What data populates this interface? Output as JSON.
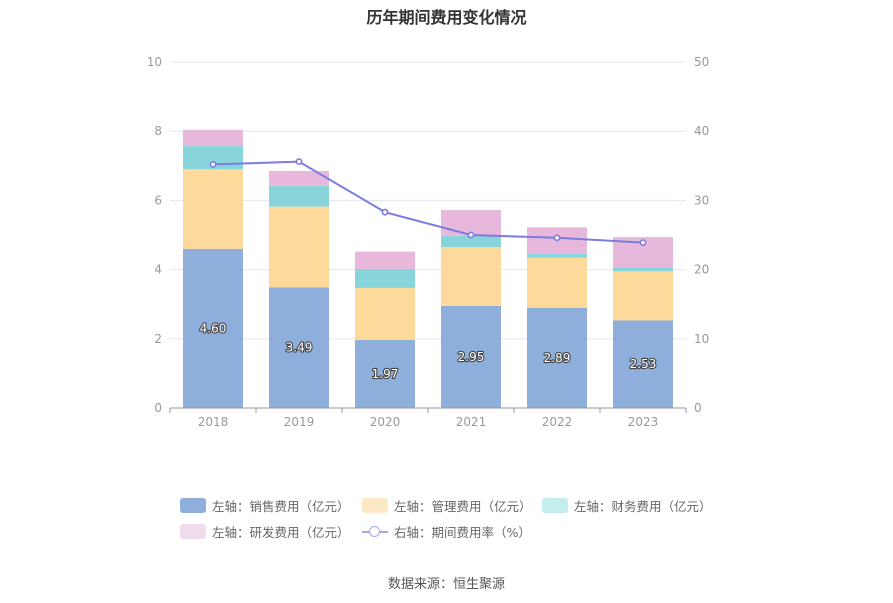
{
  "chart_data": {
    "type": "bar",
    "stacked": true,
    "title": "历年期间费用变化情况",
    "categories": [
      "2018",
      "2019",
      "2020",
      "2021",
      "2022",
      "2023"
    ],
    "left_axis": {
      "min": 0,
      "max": 10,
      "ticks": [
        "0",
        "2",
        "4",
        "6",
        "8",
        "10"
      ]
    },
    "right_axis": {
      "min": 0,
      "max": 50,
      "ticks": [
        "0",
        "10",
        "20",
        "30",
        "40",
        "50"
      ]
    },
    "series": [
      {
        "name": "左轴：销售费用（亿元）",
        "axis": "left",
        "color": "#8eaedb",
        "values": [
          4.6,
          3.49,
          1.97,
          2.95,
          2.89,
          2.53
        ],
        "labels": [
          "4.60",
          "3.49",
          "1.97",
          "2.95",
          "2.89",
          "2.53"
        ]
      },
      {
        "name": "左轴：管理费用（亿元）",
        "axis": "left",
        "color": "#fdd99c",
        "values": [
          2.3,
          2.33,
          1.5,
          1.7,
          1.45,
          1.42
        ]
      },
      {
        "name": "左轴：财务费用（亿元）",
        "axis": "left",
        "color": "#87d5db",
        "values": [
          0.67,
          0.6,
          0.55,
          0.33,
          0.12,
          0.12
        ]
      },
      {
        "name": "左轴：研发费用（亿元）",
        "axis": "left",
        "color": "#e8b8dc",
        "values": [
          0.47,
          0.43,
          0.5,
          0.74,
          0.76,
          0.87
        ]
      },
      {
        "name": "右轴：期间费用率（%）",
        "axis": "right",
        "type": "line",
        "color": "#7b7be0",
        "values": [
          35.2,
          35.6,
          28.3,
          25.0,
          24.6,
          23.9
        ]
      }
    ],
    "legend": {
      "position": "bottom"
    },
    "source": "数据来源：恒生聚源"
  }
}
